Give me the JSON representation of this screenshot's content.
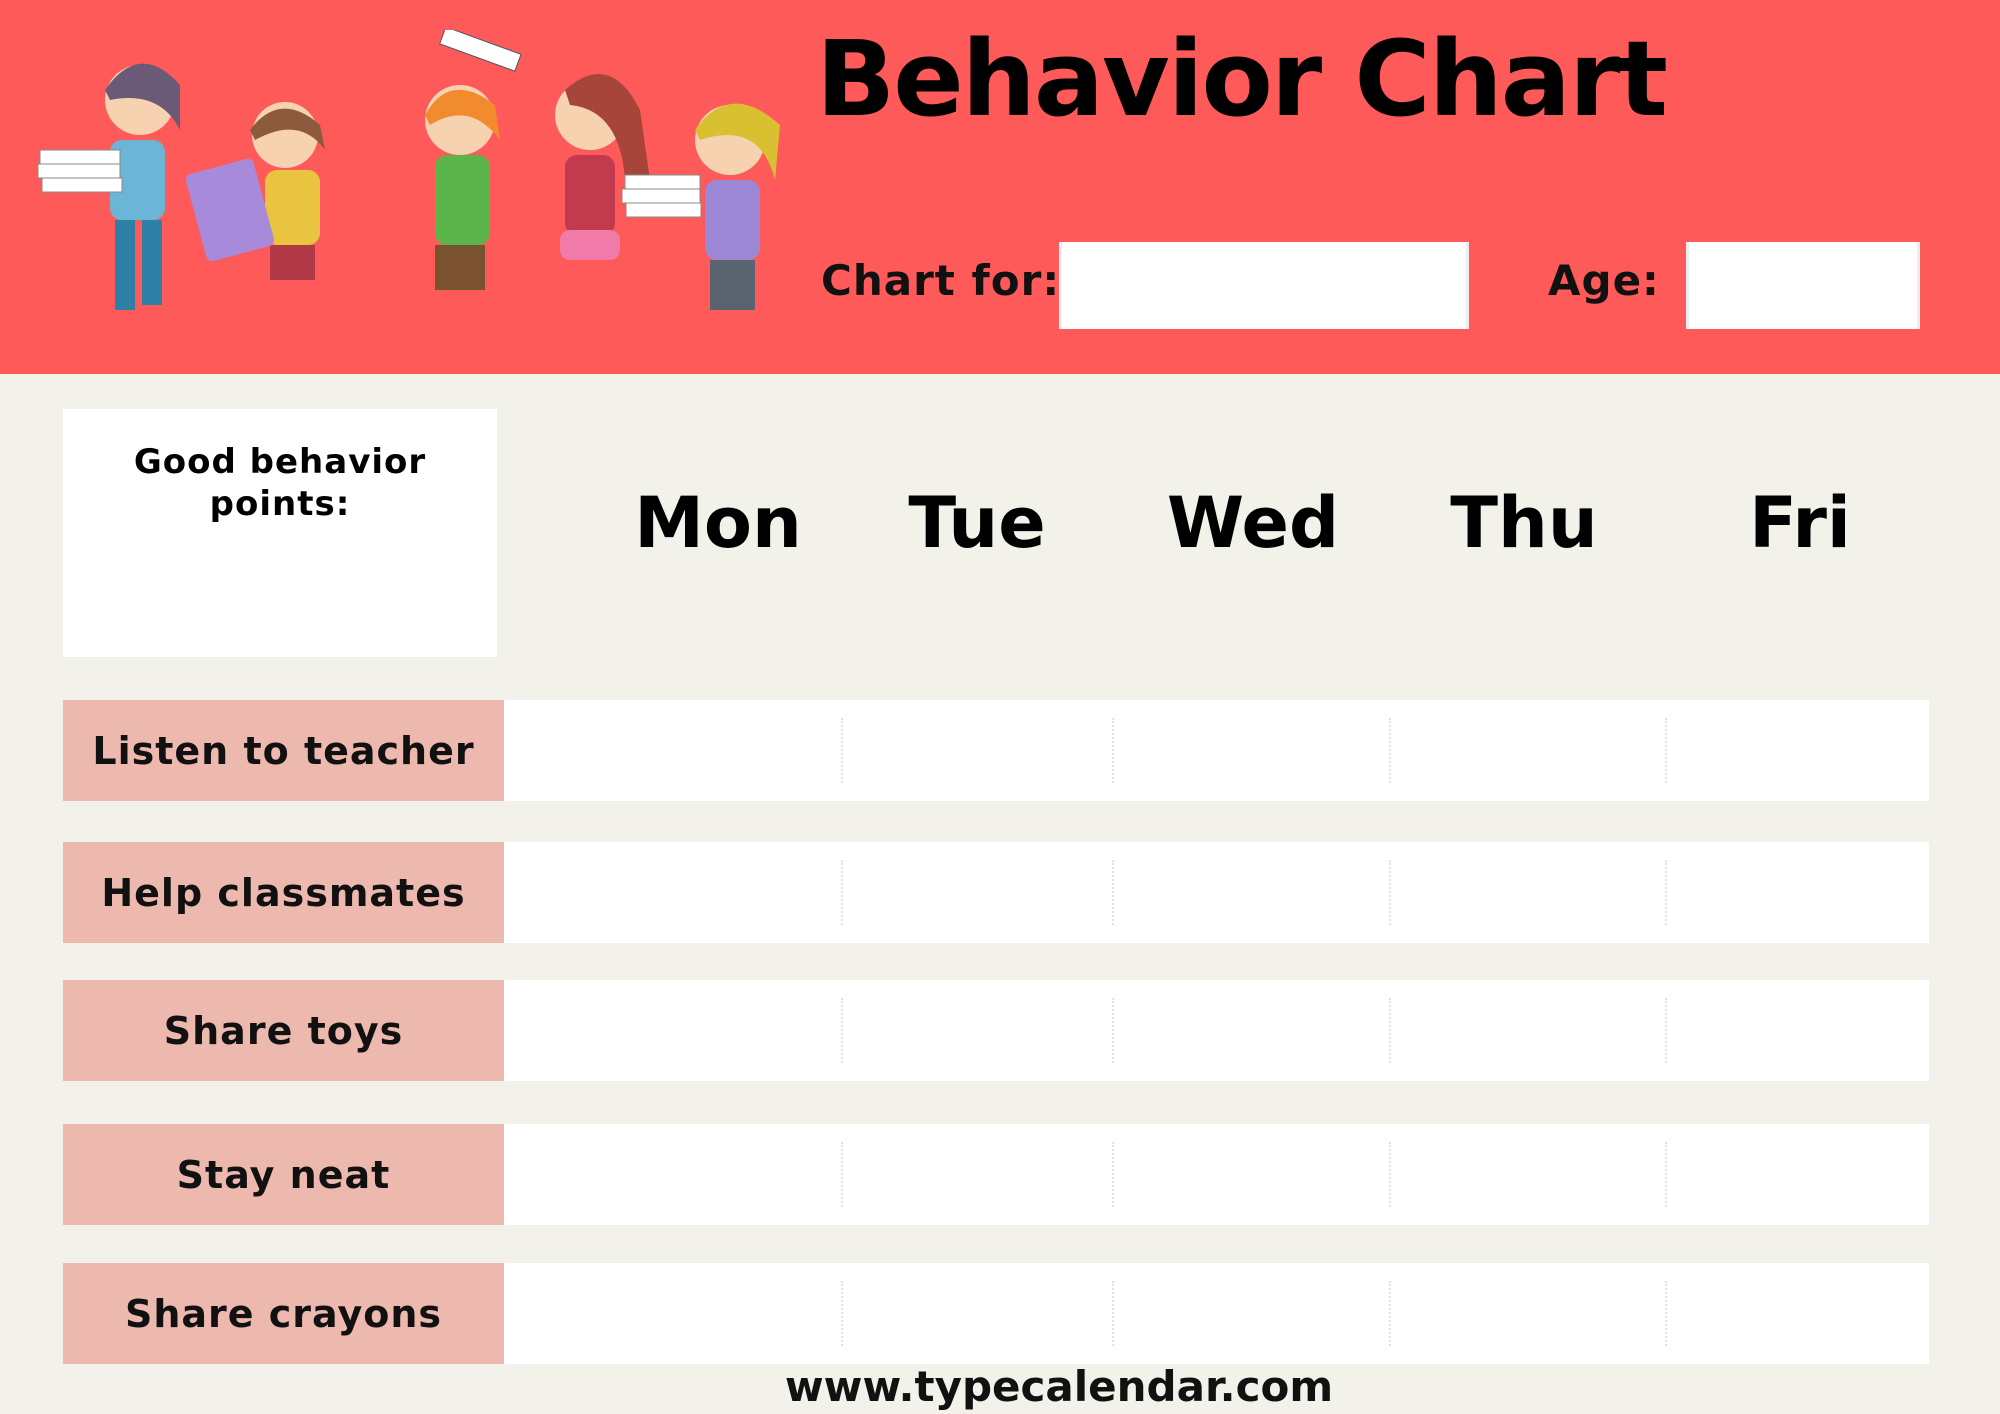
{
  "header": {
    "title": "Behavior Chart",
    "chart_for_label": "Chart for:",
    "chart_for_value": "",
    "age_label": "Age:",
    "age_value": "",
    "illustration": "children-carrying-books",
    "background_color": "#FF5A5A"
  },
  "points": {
    "label": "Good behavior points:",
    "value": ""
  },
  "days": [
    "Mon",
    "Tue",
    "Wed",
    "Thu",
    "Fri"
  ],
  "behaviors": [
    {
      "label": "Listen to teacher"
    },
    {
      "label": "Help classmates"
    },
    {
      "label": "Share toys"
    },
    {
      "label": "Stay neat"
    },
    {
      "label": "Share crayons"
    }
  ],
  "colors": {
    "page": "#F3F2EA",
    "behavior_label": "#EDB8AE"
  },
  "footer": {
    "url": "www.typecalendar.com"
  }
}
